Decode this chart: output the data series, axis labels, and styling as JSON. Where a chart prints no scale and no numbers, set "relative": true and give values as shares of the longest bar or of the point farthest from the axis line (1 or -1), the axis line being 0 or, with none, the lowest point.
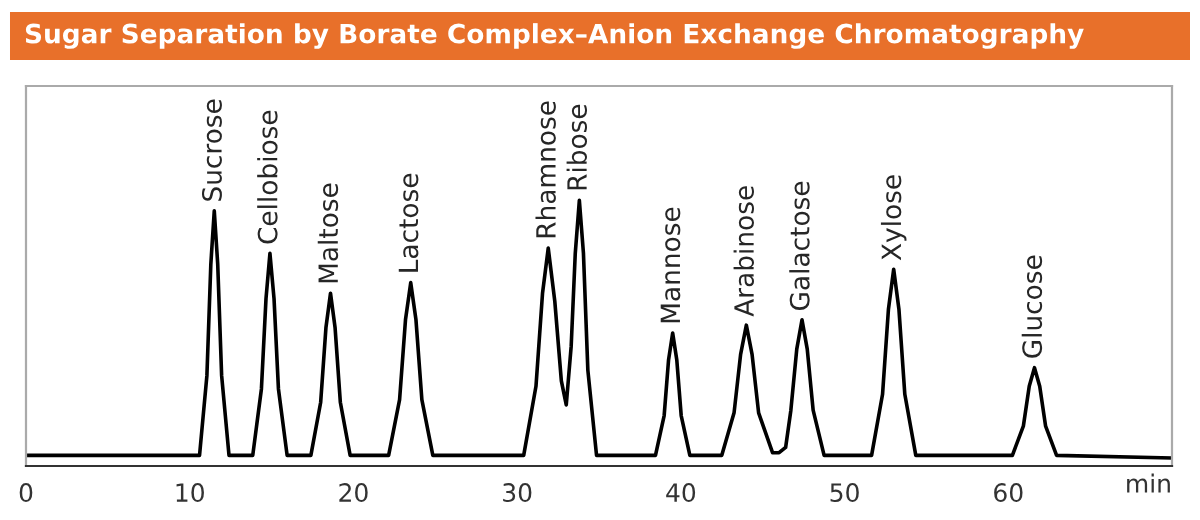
{
  "chart_data": {
    "type": "line",
    "title": "Sugar Separation by Borate Complex–Anion Exchange Chromatography",
    "xlabel": "min",
    "relative": true,
    "color": "#000000",
    "xlim": [
      0,
      70
    ],
    "xticks": [
      0,
      10,
      20,
      30,
      40,
      50,
      60
    ],
    "x": [
      0,
      10.6,
      11.05,
      11.29,
      11.5,
      11.71,
      11.95,
      12.4,
      13.85,
      14.38,
      14.66,
      14.9,
      15.15,
      15.42,
      15.95,
      17.4,
      18.0,
      18.32,
      18.6,
      18.88,
      19.2,
      19.8,
      22.15,
      22.82,
      23.18,
      23.5,
      23.82,
      24.18,
      24.85,
      29.5,
      30.4,
      31.15,
      31.55,
      31.9,
      32.3,
      32.7,
      33.0,
      33.3,
      33.55,
      33.8,
      34.05,
      34.32,
      34.85,
      38.45,
      38.98,
      39.25,
      39.5,
      39.75,
      40.02,
      40.55,
      42.5,
      43.25,
      43.65,
      44.0,
      44.35,
      44.75,
      45.6,
      46.0,
      46.4,
      46.72,
      47.08,
      47.4,
      47.72,
      48.08,
      48.75,
      51.65,
      52.32,
      52.68,
      53.0,
      53.32,
      53.68,
      54.35,
      60.25,
      60.92,
      61.28,
      61.6,
      61.92,
      62.28,
      62.95,
      70
    ],
    "values": [
      0.04,
      0.04,
      0.34,
      0.76,
      0.96,
      0.76,
      0.34,
      0.04,
      0.04,
      0.29,
      0.63,
      0.8,
      0.63,
      0.29,
      0.04,
      0.04,
      0.24,
      0.52,
      0.65,
      0.52,
      0.24,
      0.04,
      0.04,
      0.25,
      0.55,
      0.69,
      0.55,
      0.25,
      0.04,
      0.04,
      0.04,
      0.3,
      0.65,
      0.82,
      0.62,
      0.32,
      0.23,
      0.45,
      0.8,
      1.0,
      0.8,
      0.36,
      0.04,
      0.04,
      0.19,
      0.4,
      0.5,
      0.4,
      0.19,
      0.04,
      0.04,
      0.2,
      0.42,
      0.53,
      0.42,
      0.2,
      0.05,
      0.05,
      0.07,
      0.21,
      0.44,
      0.55,
      0.44,
      0.21,
      0.04,
      0.04,
      0.27,
      0.59,
      0.74,
      0.59,
      0.27,
      0.04,
      0.04,
      0.15,
      0.3,
      0.37,
      0.3,
      0.15,
      0.04,
      0.03
    ],
    "annotations": [
      {
        "text": "Sucrose",
        "x": 11.5,
        "y": 0.96
      },
      {
        "text": "Cellobiose",
        "x": 14.9,
        "y": 0.8
      },
      {
        "text": "Maltose",
        "x": 18.6,
        "y": 0.65
      },
      {
        "text": "Lactose",
        "x": 23.5,
        "y": 0.69
      },
      {
        "text": "Rhamnose",
        "x": 31.9,
        "y": 0.82
      },
      {
        "text": "Ribose",
        "x": 33.8,
        "y": 1.0
      },
      {
        "text": "Mannose",
        "x": 39.5,
        "y": 0.5
      },
      {
        "text": "Arabinose",
        "x": 44.0,
        "y": 0.53
      },
      {
        "text": "Galactose",
        "x": 47.4,
        "y": 0.55
      },
      {
        "text": "Xylose",
        "x": 53.0,
        "y": 0.74
      },
      {
        "text": "Glucose",
        "x": 61.6,
        "y": 0.37
      }
    ]
  }
}
